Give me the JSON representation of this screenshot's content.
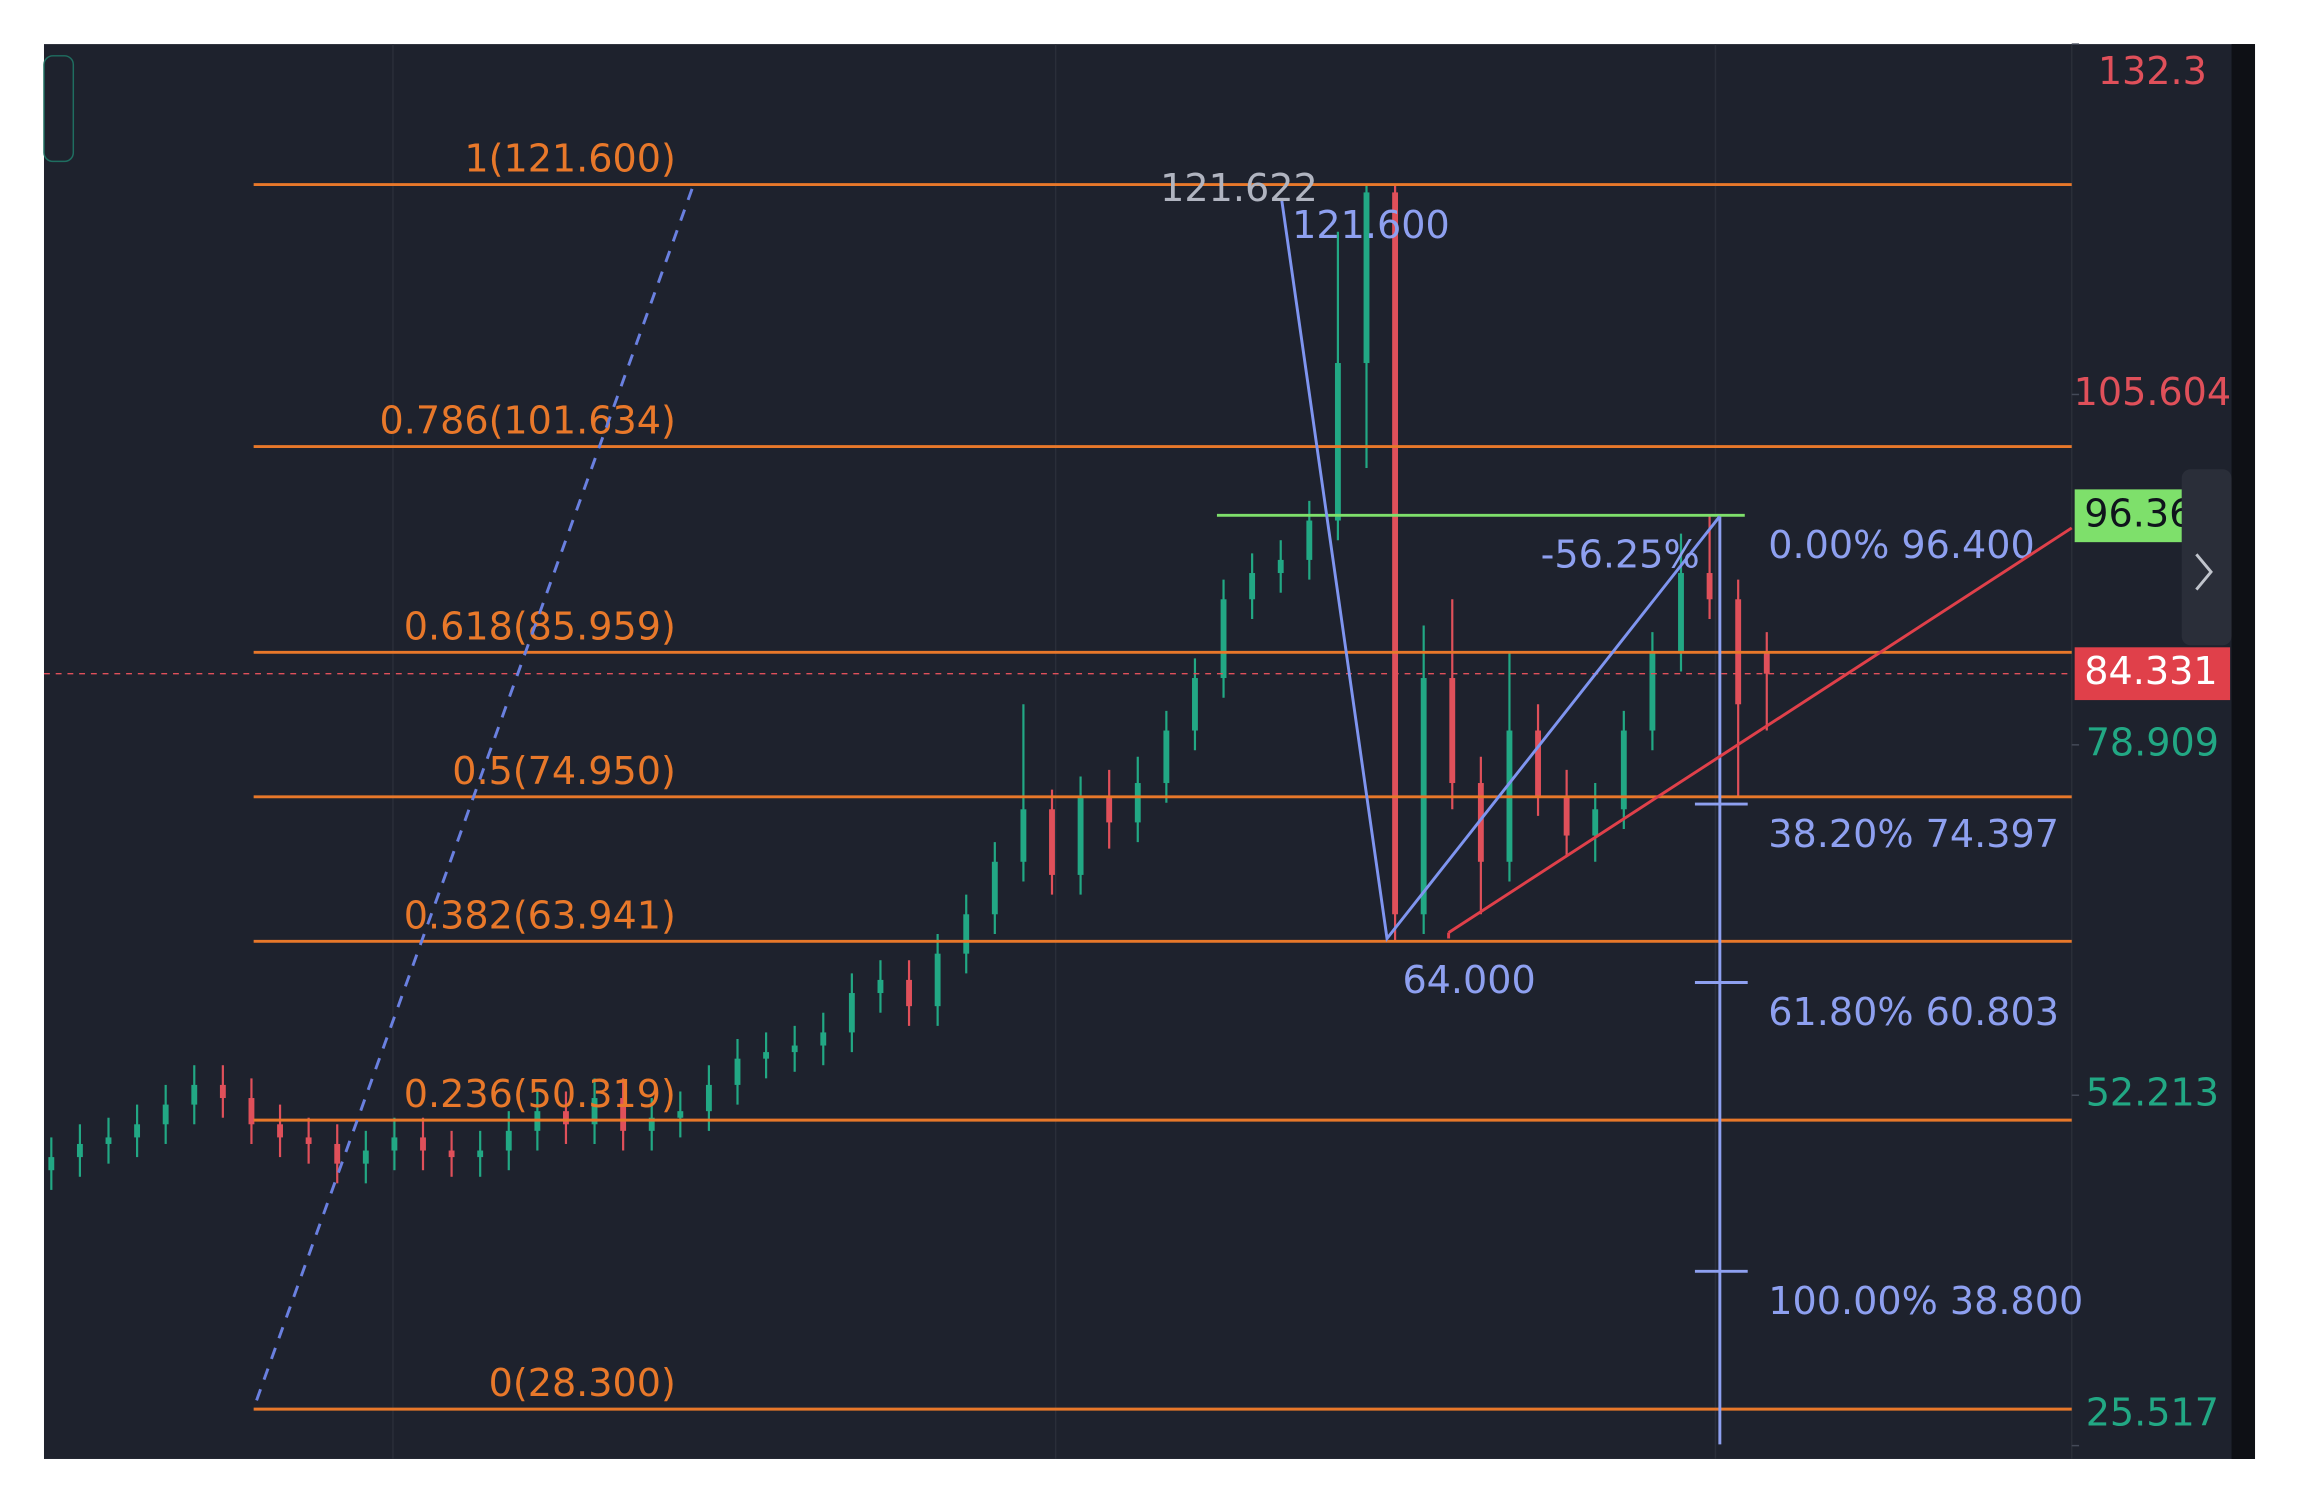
{
  "chart_data": {
    "type": "candlestick",
    "open": [
      46.5,
      47.5,
      48.5,
      49,
      50,
      51.5,
      53,
      52,
      50,
      49,
      48.5,
      47,
      48,
      49,
      48,
      47.5,
      48,
      49.5,
      51,
      50,
      52,
      49.5,
      50.5,
      51,
      53,
      55,
      55.5,
      56,
      57,
      60,
      61,
      59,
      63,
      66,
      70,
      74,
      69,
      75,
      73,
      76,
      80,
      84,
      90,
      92,
      93,
      96,
      108,
      121,
      66,
      84,
      76,
      70,
      80,
      75,
      72,
      74,
      80,
      86,
      92,
      90,
      86
    ],
    "high": [
      49,
      50,
      50.5,
      51.5,
      53,
      54.5,
      54.5,
      53.5,
      51.5,
      50.5,
      50,
      49.5,
      50.5,
      50.5,
      49.5,
      49.5,
      51,
      52.5,
      52.5,
      53.5,
      53.5,
      52,
      52.5,
      54.5,
      56.5,
      57,
      57.5,
      58.5,
      61.5,
      62.5,
      62.5,
      64.5,
      67.5,
      71.5,
      82,
      75.5,
      76.5,
      77,
      78,
      81.5,
      85.5,
      91.5,
      93.5,
      94.5,
      97.5,
      118,
      121.622,
      121.6,
      88,
      90,
      78,
      86,
      82,
      77,
      76,
      81.5,
      87.5,
      95,
      96.4,
      91.5,
      87.5
    ],
    "low": [
      45,
      46,
      47,
      47.5,
      48.5,
      50,
      50.5,
      48.5,
      47.5,
      47,
      45.5,
      45.5,
      46.5,
      46.5,
      46,
      46,
      46.5,
      48,
      48.5,
      48.5,
      48,
      48,
      49,
      49.5,
      51.5,
      53.5,
      54,
      54.5,
      55.5,
      58.5,
      57.5,
      57.5,
      61.5,
      64.5,
      68.5,
      67.5,
      67.5,
      71,
      71.5,
      74.5,
      78.5,
      82.5,
      88.5,
      90.5,
      91.5,
      94.5,
      100,
      64,
      64.5,
      74,
      66,
      68.5,
      73.5,
      70.5,
      70,
      72.5,
      78.5,
      84.5,
      88.5,
      75,
      80
    ],
    "close": [
      47.5,
      48.5,
      49,
      50,
      51.5,
      53,
      52,
      50,
      49,
      48.5,
      47,
      48,
      49,
      48,
      47.5,
      48,
      49.5,
      51,
      50,
      52,
      49.5,
      50.5,
      51,
      53,
      55,
      55.5,
      56,
      57,
      60,
      61,
      59,
      63,
      66,
      70,
      74,
      69,
      75,
      73,
      76,
      80,
      84,
      90,
      92,
      93,
      96,
      108,
      121,
      66,
      84,
      76,
      70,
      80,
      75,
      72,
      74,
      80,
      86,
      92,
      90,
      82,
      84.331
    ],
    "up_color": "#22a884",
    "down_color": "#e0505a",
    "ylim": [
      24.5,
      132.3
    ],
    "yticks": [
      25.517,
      52.213,
      78.909,
      105.604,
      132.3
    ],
    "ytick_colors": [
      "#22a884",
      "#22a884",
      "#22a884",
      "#e0505a",
      "#e0505a"
    ],
    "last_price": 84.331,
    "marker_price": 96.363,
    "fib": {
      "color": "#e8782a",
      "levels": [
        121.6,
        101.634,
        85.959,
        74.95,
        63.941,
        50.319,
        28.3
      ],
      "value_labels": [
        "1(121.600)",
        "0.786(101.634)",
        "0.618(85.959)",
        "0.5(74.950)",
        "0.382(63.941)",
        "0.236(50.319)",
        "0(28.300)"
      ]
    },
    "retracement": {
      "color": "#8ea0f0",
      "levels": [
        96.4,
        74.397,
        60.803,
        38.8
      ],
      "value_labels": [
        "0.00% 96.400",
        "38.20% 74.397",
        "61.80% 60.803",
        "100.00% 38.800"
      ]
    },
    "annotations": [
      "121.622",
      "121.600",
      "64.000",
      "-56.25%"
    ]
  }
}
